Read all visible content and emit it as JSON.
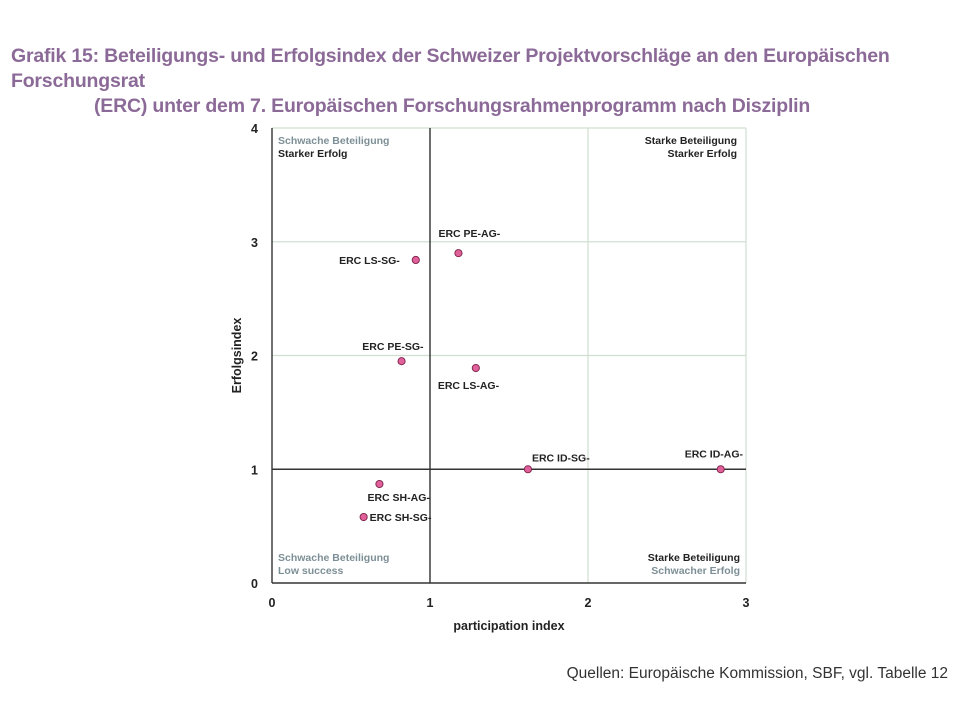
{
  "title": {
    "line1": "Grafik 15: Beteiligungs- und Erfolgsindex der Schweizer Projektvorschläge an den Europäischen Forschungsrat",
    "line2": "(ERC) unter dem 7. Europäischen Forschungsrahmenprogramm nach Disziplin"
  },
  "source": "Quellen: Europäische Kommission, SBF, vgl. Tabelle 12",
  "quadrants": {
    "top_left": [
      "Schwache Beteiligung",
      "Starker Erfolg"
    ],
    "top_right": [
      "Starke Beteiligung",
      "Starker Erfolg"
    ],
    "bottom_left": [
      "Schwache Beteiligung",
      "Low success"
    ],
    "bottom_right": [
      "Starke Beteiligung",
      "Schwacher Erfolg"
    ]
  },
  "colors": {
    "point_fill": "#e0609a",
    "point_stroke": "#7a2048",
    "grid": "#cfe0d0",
    "axis": "#333333",
    "title": "#8c6a98",
    "quadrant_muted": "#7d8f96"
  },
  "chart_data": {
    "type": "scatter",
    "xlabel": "participation index",
    "ylabel": "Erfolgsindex",
    "xlim": [
      0,
      3
    ],
    "ylim": [
      0,
      4
    ],
    "xticks": [
      0,
      1,
      2,
      3
    ],
    "yticks": [
      0,
      1,
      2,
      3,
      4
    ],
    "grid": true,
    "reference_lines": {
      "x": 1,
      "y": 1
    },
    "points": [
      {
        "label": "ERC PE-AG-",
        "x": 1.18,
        "y": 2.9
      },
      {
        "label": "ERC LS-SG-",
        "x": 0.91,
        "y": 2.84
      },
      {
        "label": "ERC PE-SG-",
        "x": 0.82,
        "y": 1.95
      },
      {
        "label": "ERC LS-AG-",
        "x": 1.29,
        "y": 1.89
      },
      {
        "label": "ERC ID-SG-",
        "x": 1.62,
        "y": 1.0
      },
      {
        "label": "ERC ID-AG-",
        "x": 2.84,
        "y": 1.0
      },
      {
        "label": "ERC SH-AG-",
        "x": 0.68,
        "y": 0.87
      },
      {
        "label": "ERC SH-SG-",
        "x": 0.58,
        "y": 0.58
      }
    ]
  }
}
